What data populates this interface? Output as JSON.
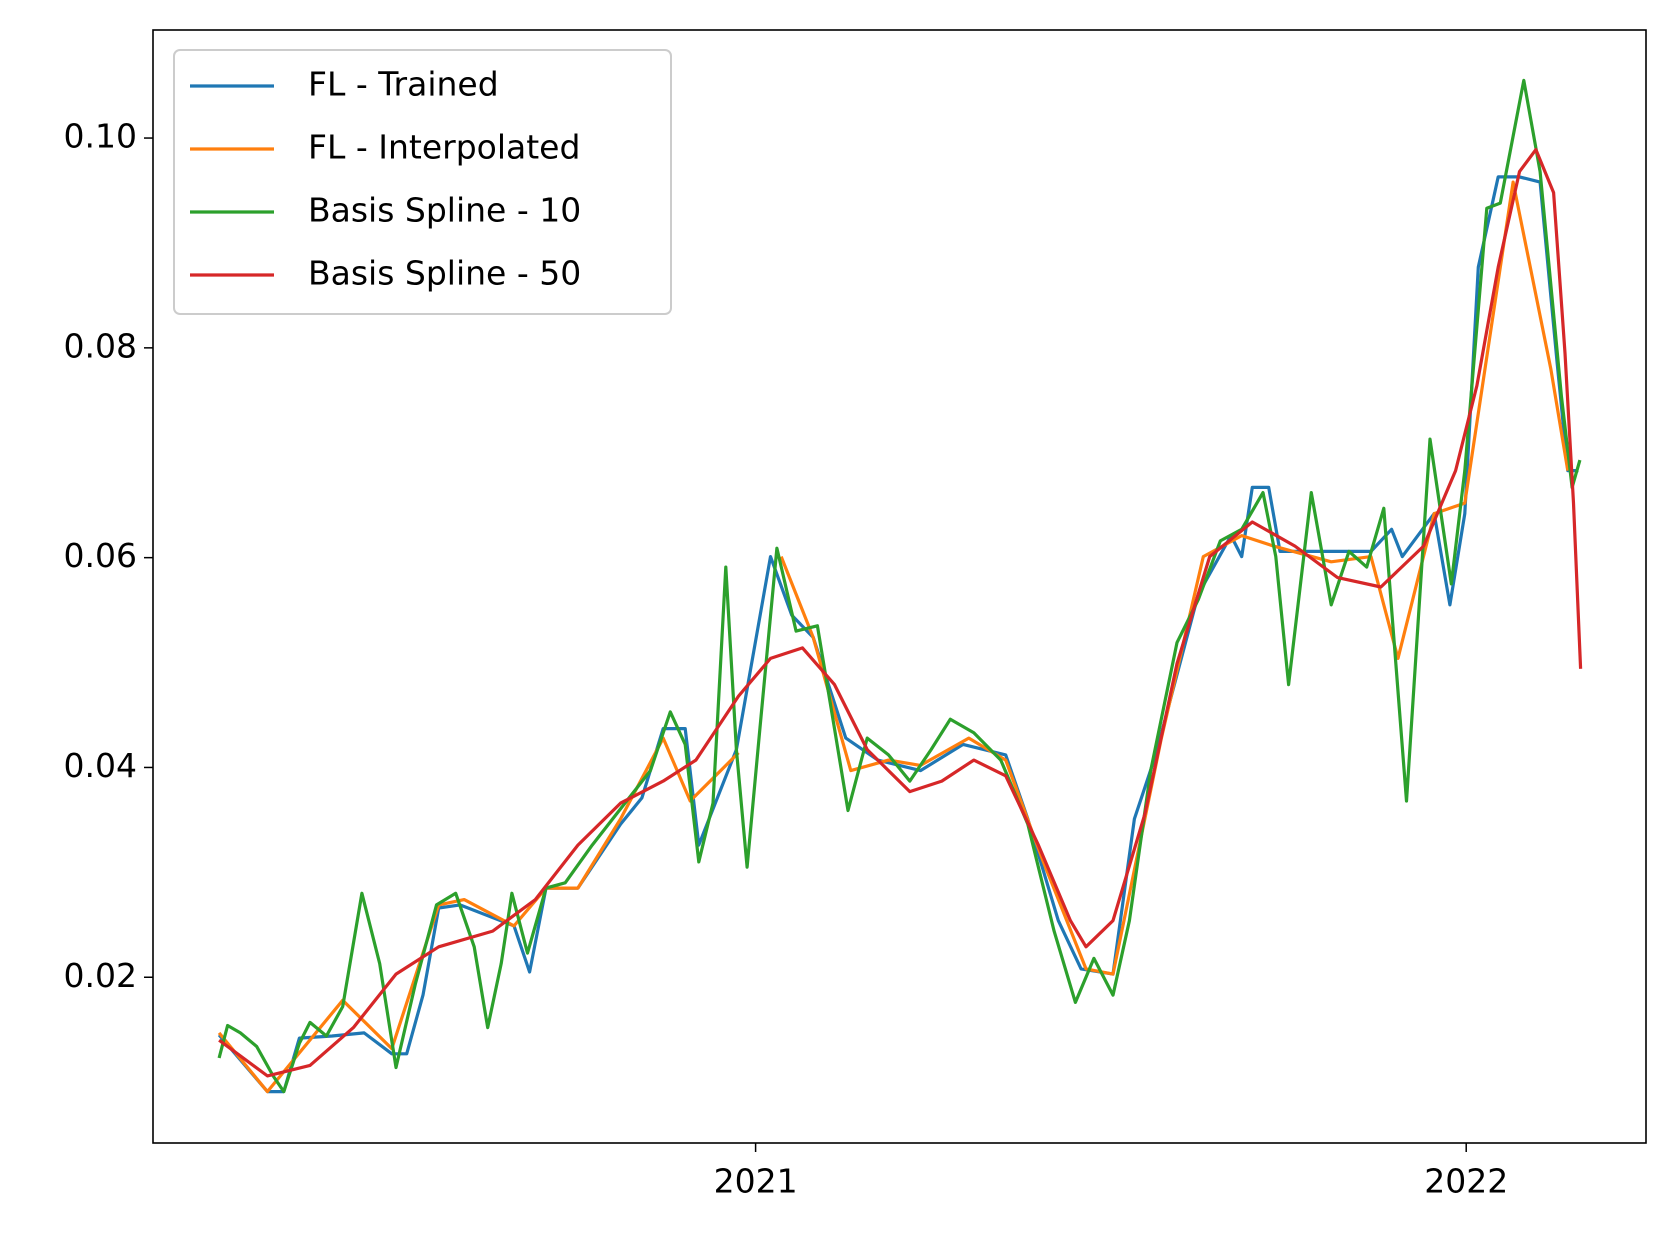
{
  "chart_data": {
    "type": "line",
    "xlim": [
      2020.152,
      2022.253
    ],
    "ylim": [
      0.0042,
      0.1103
    ],
    "xticks": [
      2021,
      2022
    ],
    "yticks": [
      0.02,
      0.04,
      0.06,
      0.08,
      {
        "value": 0.1,
        "label": "0.10"
      }
    ],
    "grid": false,
    "legend": "upper left",
    "series": [
      {
        "name": "FL - Trained",
        "color": "#1f77b4",
        "x": [
          2020.245,
          2020.313,
          2020.336,
          2020.358,
          2020.404,
          2020.449,
          2020.488,
          2020.509,
          2020.532,
          2020.554,
          2020.584,
          2020.66,
          2020.682,
          2020.705,
          2020.75,
          2020.81,
          2020.84,
          2020.87,
          2020.901,
          2020.92,
          2020.973,
          2021.021,
          2021.051,
          2021.081,
          2021.127,
          2021.172,
          2021.232,
          2021.292,
          2021.352,
          2021.383,
          2021.426,
          2021.458,
          2021.503,
          2021.533,
          2021.563,
          2021.623,
          2021.669,
          2021.684,
          2021.699,
          2021.722,
          2021.738,
          2021.807,
          2021.836,
          2021.866,
          2021.895,
          2021.91,
          2021.955,
          2021.977,
          2021.998,
          2022.017,
          2022.045,
          2022.075,
          2022.104,
          2022.128,
          2022.143,
          2022.158
        ],
        "values": [
          0.0145,
          0.0091,
          0.0091,
          0.0142,
          0.0144,
          0.0147,
          0.0127,
          0.0127,
          0.0183,
          0.0266,
          0.0269,
          0.0249,
          0.0205,
          0.0285,
          0.0285,
          0.0346,
          0.0371,
          0.0437,
          0.0437,
          0.0326,
          0.0417,
          0.0601,
          0.0545,
          0.0524,
          0.0428,
          0.0407,
          0.0397,
          0.0422,
          0.0412,
          0.0351,
          0.0254,
          0.0208,
          0.0203,
          0.0351,
          0.0412,
          0.0565,
          0.0621,
          0.0601,
          0.0667,
          0.0667,
          0.0606,
          0.0606,
          0.0606,
          0.0606,
          0.0627,
          0.0601,
          0.0642,
          0.0555,
          0.0642,
          0.0877,
          0.0963,
          0.0963,
          0.0958,
          0.0785,
          0.0683,
          0.0683
        ]
      },
      {
        "name": "FL - Interpolated",
        "color": "#ff7f0e",
        "x": [
          2020.245,
          2020.313,
          2020.419,
          2020.488,
          2020.554,
          2020.59,
          2020.66,
          2020.705,
          2020.75,
          2020.81,
          2020.87,
          2020.908,
          2020.976,
          null,
          2021.036,
          2021.081,
          2021.134,
          2021.187,
          2021.232,
          2021.3,
          2021.352,
          2021.405,
          2021.465,
          2021.503,
          2021.571,
          2021.63,
          2021.684,
          2021.729,
          2021.81,
          2021.866,
          2021.904,
          2021.955,
          2021.998,
          2022.066,
          2022.119,
          2022.143
        ],
        "values": [
          0.0147,
          0.0091,
          0.0178,
          0.0132,
          0.0269,
          0.0274,
          0.0249,
          0.0285,
          0.0285,
          0.0351,
          0.0428,
          0.0368,
          0.0414,
          null,
          0.0601,
          0.0524,
          0.0397,
          0.0407,
          0.0402,
          0.0428,
          0.0407,
          0.031,
          0.0208,
          0.0203,
          0.0428,
          0.0601,
          0.0621,
          0.0611,
          0.0596,
          0.0601,
          0.0504,
          0.0642,
          0.0652,
          0.0958,
          0.078,
          0.0683
        ]
      },
      {
        "name": "Basis Spline - 10",
        "color": "#2ca02c",
        "x": [
          2020.245,
          2020.257,
          2020.275,
          2020.298,
          2020.321,
          2020.336,
          2020.358,
          2020.373,
          2020.396,
          2020.419,
          2020.446,
          2020.471,
          2020.494,
          2020.521,
          2020.551,
          2020.578,
          2020.604,
          2020.623,
          2020.642,
          2020.657,
          2020.679,
          2020.705,
          2020.732,
          2020.77,
          2020.822,
          2020.852,
          2020.88,
          2020.901,
          2020.92,
          2020.94,
          2020.958,
          2020.973,
          2020.988,
          2021.006,
          2021.03,
          2021.057,
          2021.087,
          2021.111,
          2021.13,
          2021.157,
          2021.187,
          2021.217,
          2021.247,
          2021.274,
          2021.307,
          2021.345,
          2021.383,
          2021.42,
          2021.45,
          2021.476,
          2021.503,
          2021.526,
          2021.556,
          2021.593,
          2021.623,
          2021.654,
          2021.684,
          2021.714,
          2021.732,
          2021.75,
          2021.782,
          2021.81,
          2021.835,
          2021.86,
          2021.884,
          2021.916,
          2021.949,
          2021.979,
          2021.998,
          2022.029,
          2022.048,
          2022.081,
          2022.104,
          2022.134,
          2022.149,
          2022.16
        ],
        "values": [
          0.0123,
          0.0154,
          0.0147,
          0.0134,
          0.0106,
          0.0091,
          0.0137,
          0.0157,
          0.0144,
          0.0172,
          0.028,
          0.0213,
          0.0114,
          0.0193,
          0.0269,
          0.028,
          0.0229,
          0.0152,
          0.0213,
          0.028,
          0.0223,
          0.0285,
          0.029,
          0.0326,
          0.0371,
          0.0397,
          0.0453,
          0.0422,
          0.031,
          0.0366,
          0.0591,
          0.0417,
          0.0305,
          0.0437,
          0.0609,
          0.053,
          0.0535,
          0.0437,
          0.0359,
          0.0428,
          0.0412,
          0.0387,
          0.0417,
          0.0446,
          0.0433,
          0.0407,
          0.0346,
          0.0244,
          0.0176,
          0.0218,
          0.0183,
          0.0254,
          0.0397,
          0.0519,
          0.056,
          0.0616,
          0.0627,
          0.0662,
          0.0601,
          0.0479,
          0.0662,
          0.0555,
          0.0606,
          0.0591,
          0.0647,
          0.0368,
          0.0713,
          0.0575,
          0.0683,
          0.0933,
          0.0938,
          0.1055,
          0.0968,
          0.0754,
          0.0667,
          0.0693
        ]
      },
      {
        "name": "Basis Spline - 50",
        "color": "#d62728",
        "x": [
          2020.245,
          2020.313,
          2020.373,
          2020.434,
          2020.494,
          2020.554,
          2020.63,
          2020.69,
          2020.75,
          2020.81,
          2020.87,
          2020.916,
          2020.976,
          2021.021,
          2021.066,
          2021.111,
          2021.157,
          2021.217,
          2021.262,
          2021.307,
          2021.352,
          2021.398,
          2021.443,
          2021.465,
          2021.503,
          2021.548,
          2021.593,
          2021.639,
          2021.699,
          2021.759,
          2021.819,
          2021.88,
          2021.94,
          2021.985,
          2022.015,
          2022.045,
          2022.075,
          2022.098,
          2022.123,
          2022.139,
          2022.151,
          2022.161
        ],
        "values": [
          0.014,
          0.0106,
          0.0116,
          0.0152,
          0.0203,
          0.0229,
          0.0244,
          0.0274,
          0.0326,
          0.0366,
          0.0387,
          0.0407,
          0.0468,
          0.0504,
          0.0514,
          0.0479,
          0.0417,
          0.0377,
          0.0387,
          0.0407,
          0.0392,
          0.0326,
          0.0254,
          0.0229,
          0.0254,
          0.0356,
          0.0499,
          0.0601,
          0.0634,
          0.0611,
          0.0581,
          0.0572,
          0.0611,
          0.0683,
          0.0764,
          0.0877,
          0.0968,
          0.0989,
          0.0948,
          0.0795,
          0.0652,
          0.0494
        ]
      }
    ]
  }
}
